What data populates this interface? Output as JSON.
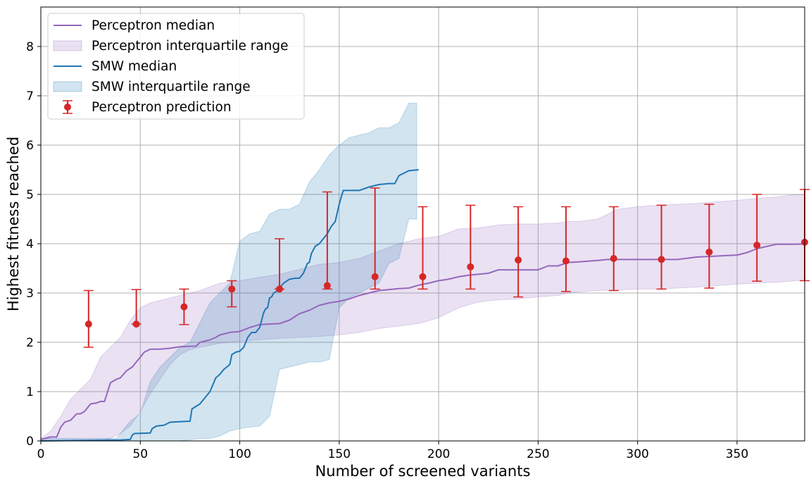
{
  "chart_data": {
    "type": "line",
    "xlabel": "Number of screened variants",
    "ylabel": "Highest fitness reached",
    "xlim": [
      0,
      384
    ],
    "ylim": [
      0,
      8.8
    ],
    "xticks": [
      0,
      50,
      100,
      150,
      200,
      250,
      300,
      350
    ],
    "yticks": [
      0,
      1,
      2,
      3,
      4,
      5,
      6,
      7,
      8
    ],
    "grid": true,
    "legend_position": "top-left",
    "series": [
      {
        "name": "Perceptron median",
        "kind": "line",
        "color": "#9467bd",
        "x": [
          0,
          5,
          8,
          10,
          12,
          15,
          18,
          20,
          22,
          25,
          28,
          30,
          32,
          35,
          38,
          40,
          43,
          46,
          48,
          50,
          52,
          55,
          60,
          65,
          70,
          75,
          78,
          80,
          85,
          88,
          90,
          95,
          100,
          105,
          110,
          115,
          120,
          125,
          130,
          135,
          140,
          145,
          150,
          155,
          160,
          165,
          170,
          175,
          180,
          185,
          190,
          195,
          200,
          205,
          210,
          215,
          220,
          225,
          230,
          235,
          240,
          250,
          255,
          260,
          265,
          270,
          280,
          285,
          290,
          300,
          310,
          320,
          330,
          340,
          350,
          355,
          360,
          370,
          380,
          384
        ],
        "y": [
          0.03,
          0.08,
          0.08,
          0.28,
          0.38,
          0.42,
          0.55,
          0.55,
          0.6,
          0.75,
          0.77,
          0.8,
          0.8,
          1.18,
          1.25,
          1.28,
          1.42,
          1.5,
          1.6,
          1.7,
          1.8,
          1.86,
          1.86,
          1.88,
          1.91,
          1.92,
          1.92,
          2.0,
          2.05,
          2.1,
          2.15,
          2.2,
          2.22,
          2.3,
          2.36,
          2.37,
          2.38,
          2.45,
          2.58,
          2.65,
          2.75,
          2.8,
          2.83,
          2.88,
          2.95,
          3.0,
          3.05,
          3.07,
          3.09,
          3.1,
          3.16,
          3.2,
          3.25,
          3.28,
          3.33,
          3.36,
          3.38,
          3.4,
          3.47,
          3.47,
          3.47,
          3.47,
          3.55,
          3.55,
          3.62,
          3.63,
          3.66,
          3.68,
          3.68,
          3.68,
          3.68,
          3.68,
          3.73,
          3.75,
          3.77,
          3.82,
          3.9,
          3.99,
          3.99,
          4.0
        ]
      },
      {
        "name": "Perceptron interquartile range",
        "kind": "band",
        "color": "#9467bd",
        "x": [
          0,
          5,
          10,
          15,
          20,
          25,
          30,
          35,
          40,
          45,
          50,
          55,
          60,
          65,
          70,
          75,
          80,
          90,
          100,
          110,
          120,
          130,
          140,
          150,
          160,
          170,
          180,
          190,
          200,
          210,
          220,
          230,
          240,
          250,
          260,
          265,
          270,
          280,
          290,
          300,
          310,
          320,
          330,
          340,
          350,
          360,
          370,
          380,
          384
        ],
        "lower": [
          0,
          0,
          0,
          0,
          0,
          0,
          0,
          0.05,
          0.15,
          0.3,
          0.6,
          0.95,
          1.25,
          1.55,
          1.75,
          1.85,
          1.9,
          1.98,
          2.02,
          2.05,
          2.08,
          2.1,
          2.12,
          2.15,
          2.2,
          2.28,
          2.33,
          2.38,
          2.5,
          2.7,
          2.82,
          2.86,
          2.88,
          2.92,
          2.95,
          3.0,
          3.02,
          3.05,
          3.06,
          3.08,
          3.08,
          3.1,
          3.12,
          3.15,
          3.18,
          3.2,
          3.22,
          3.25,
          3.25
        ],
        "upper": [
          0.05,
          0.2,
          0.5,
          0.85,
          1.05,
          1.25,
          1.7,
          1.9,
          2.1,
          2.45,
          2.7,
          2.8,
          2.85,
          2.9,
          2.95,
          3.0,
          3.05,
          3.2,
          3.25,
          3.32,
          3.38,
          3.48,
          3.58,
          3.62,
          3.7,
          3.85,
          4.0,
          4.1,
          4.15,
          4.3,
          4.32,
          4.38,
          4.4,
          4.4,
          4.42,
          4.45,
          4.45,
          4.5,
          4.7,
          4.75,
          4.78,
          4.8,
          4.82,
          4.85,
          4.88,
          4.92,
          4.95,
          5.0,
          5.0
        ]
      },
      {
        "name": "SMW median",
        "kind": "line",
        "color": "#1f77b4",
        "x": [
          0,
          20,
          40,
          45,
          46,
          47,
          55,
          56,
          58,
          62,
          65,
          75,
          76,
          80,
          82,
          85,
          88,
          90,
          92,
          95,
          96,
          98,
          100,
          102,
          104,
          106,
          108,
          110,
          112,
          113,
          114,
          115,
          116,
          117,
          118,
          119,
          120,
          122,
          125,
          128,
          130,
          132,
          134,
          135,
          136,
          138,
          140,
          142,
          144,
          146,
          148,
          150,
          152,
          155,
          160,
          165,
          170,
          175,
          178,
          180,
          185,
          190
        ],
        "y": [
          0,
          0.01,
          0.02,
          0.03,
          0.12,
          0.15,
          0.16,
          0.25,
          0.3,
          0.32,
          0.38,
          0.4,
          0.65,
          0.75,
          0.85,
          1.0,
          1.28,
          1.35,
          1.45,
          1.55,
          1.75,
          1.8,
          1.82,
          1.9,
          2.1,
          2.2,
          2.2,
          2.3,
          2.6,
          2.68,
          2.7,
          2.9,
          2.92,
          3.0,
          3.02,
          3.05,
          3.1,
          3.2,
          3.28,
          3.3,
          3.3,
          3.4,
          3.6,
          3.62,
          3.8,
          3.95,
          4.0,
          4.1,
          4.2,
          4.35,
          4.45,
          4.8,
          5.08,
          5.08,
          5.08,
          5.15,
          5.2,
          5.22,
          5.22,
          5.38,
          5.48,
          5.5
        ]
      },
      {
        "name": "SMW interquartile range",
        "kind": "band",
        "color": "#1f77b4",
        "x": [
          0,
          20,
          38,
          40,
          45,
          50,
          55,
          60,
          65,
          70,
          75,
          80,
          85,
          90,
          95,
          100,
          105,
          110,
          115,
          120,
          125,
          130,
          135,
          140,
          145,
          150,
          155,
          160,
          165,
          170,
          175,
          180,
          185,
          189
        ],
        "lower": [
          0,
          0,
          0,
          0,
          0,
          0,
          0,
          0,
          0,
          0,
          0.02,
          0.05,
          0.05,
          0.1,
          0.2,
          0.25,
          0.28,
          0.3,
          0.5,
          1.45,
          1.5,
          1.55,
          1.6,
          1.6,
          1.65,
          2.7,
          2.9,
          3.0,
          3.1,
          3.2,
          3.6,
          3.7,
          4.5,
          4.5
        ],
        "upper": [
          0.05,
          0.05,
          0.05,
          0.15,
          0.4,
          0.55,
          1.2,
          1.5,
          1.7,
          1.9,
          2.0,
          2.4,
          2.8,
          3.0,
          3.2,
          4.05,
          4.2,
          4.25,
          4.6,
          4.7,
          4.7,
          4.8,
          5.25,
          5.5,
          5.8,
          6.0,
          6.15,
          6.2,
          6.25,
          6.35,
          6.35,
          6.45,
          6.85,
          6.85
        ]
      }
    ],
    "errorbar_series": {
      "name": "Perceptron prediction",
      "color": "#d62728",
      "points": [
        {
          "x": 24,
          "y": 2.37,
          "lower": 1.9,
          "upper": 3.05
        },
        {
          "x": 48,
          "y": 2.37,
          "lower": 2.37,
          "upper": 3.07
        },
        {
          "x": 72,
          "y": 2.72,
          "lower": 2.36,
          "upper": 3.08
        },
        {
          "x": 96,
          "y": 3.08,
          "lower": 2.72,
          "upper": 3.25
        },
        {
          "x": 120,
          "y": 3.08,
          "lower": 3.08,
          "upper": 4.1
        },
        {
          "x": 144,
          "y": 3.15,
          "lower": 3.08,
          "upper": 5.05
        },
        {
          "x": 168,
          "y": 3.33,
          "lower": 3.08,
          "upper": 5.13
        },
        {
          "x": 192,
          "y": 3.33,
          "lower": 3.08,
          "upper": 4.75
        },
        {
          "x": 216,
          "y": 3.53,
          "lower": 3.08,
          "upper": 4.78
        },
        {
          "x": 240,
          "y": 3.67,
          "lower": 2.92,
          "upper": 4.75
        },
        {
          "x": 264,
          "y": 3.65,
          "lower": 3.03,
          "upper": 4.75
        },
        {
          "x": 288,
          "y": 3.7,
          "lower": 3.05,
          "upper": 4.75
        },
        {
          "x": 312,
          "y": 3.68,
          "lower": 3.08,
          "upper": 4.78
        },
        {
          "x": 336,
          "y": 3.83,
          "lower": 3.1,
          "upper": 4.8
        },
        {
          "x": 360,
          "y": 3.97,
          "lower": 3.24,
          "upper": 5.0
        },
        {
          "x": 384,
          "y": 4.03,
          "lower": 3.25,
          "upper": 5.1
        }
      ]
    }
  }
}
